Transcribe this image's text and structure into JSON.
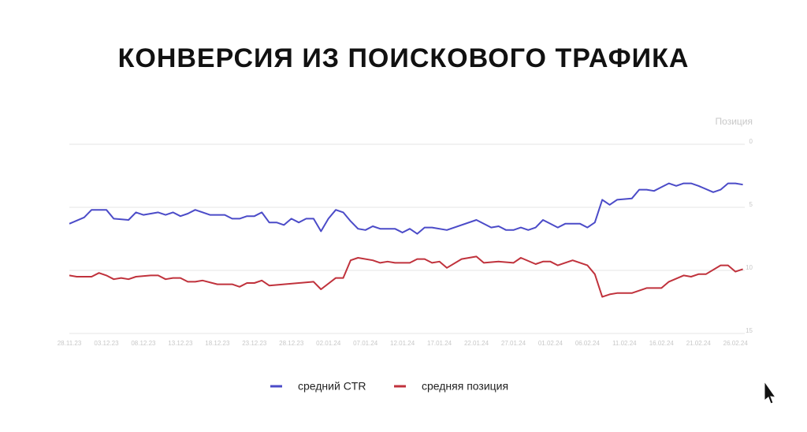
{
  "chart_data": {
    "type": "line",
    "title": "КОНВЕРСИЯ ИЗ ПОИСКОВОГО ТРАФИКА",
    "y_axis_label": "Позиция",
    "ylim": [
      0,
      15
    ],
    "y_inverted": true,
    "yticks": [
      0,
      5,
      10,
      15
    ],
    "xlim": [
      "28.11.23",
      "28.02.24"
    ],
    "xticks": [
      "28.11.23",
      "03.12.23",
      "08.12.23",
      "13.12.23",
      "18.12.23",
      "23.12.23",
      "28.12.23",
      "02.01.24",
      "07.01.24",
      "12.01.24",
      "17.01.24",
      "22.01.24",
      "27.01.24",
      "01.02.24",
      "06.02.24",
      "11.02.24",
      "16.02.24",
      "21.02.24",
      "26.02.24"
    ],
    "grid": true,
    "legend": "bottom",
    "series": [
      {
        "name": "средний CTR",
        "color": "#4b4bc8",
        "x": [
          "28.11.23",
          "30.11.23",
          "01.12.23",
          "03.12.23",
          "04.12.23",
          "06.12.23",
          "07.12.23",
          "08.12.23",
          "10.12.23",
          "11.12.23",
          "12.12.23",
          "13.12.23",
          "14.12.23",
          "15.12.23",
          "17.12.23",
          "19.12.23",
          "20.12.23",
          "21.12.23",
          "22.12.23",
          "23.12.23",
          "24.12.23",
          "25.12.23",
          "26.12.23",
          "27.12.23",
          "28.12.23",
          "29.12.23",
          "30.12.23",
          "31.12.23",
          "01.01.24",
          "02.01.24",
          "03.01.24",
          "04.01.24",
          "05.01.24",
          "06.01.24",
          "07.01.24",
          "08.01.24",
          "09.01.24",
          "11.01.24",
          "12.01.24",
          "13.01.24",
          "14.01.24",
          "15.01.24",
          "16.01.24",
          "18.01.24",
          "22.01.24",
          "24.01.24",
          "25.01.24",
          "26.01.24",
          "27.01.24",
          "28.01.24",
          "29.01.24",
          "30.01.24",
          "31.01.24",
          "02.02.24",
          "03.02.24",
          "05.02.24",
          "06.02.24",
          "07.02.24",
          "08.02.24",
          "09.02.24",
          "10.02.24",
          "12.02.24",
          "13.02.24",
          "14.02.24",
          "15.02.24",
          "16.02.24",
          "17.02.24",
          "18.02.24",
          "19.02.24",
          "20.02.24",
          "21.02.24",
          "23.02.24",
          "24.02.24",
          "25.02.24",
          "26.02.24",
          "27.02.24"
        ],
        "values": [
          6.3,
          5.8,
          5.2,
          5.2,
          5.9,
          6.0,
          5.4,
          5.6,
          5.4,
          5.6,
          5.4,
          5.7,
          5.5,
          5.2,
          5.6,
          5.6,
          5.9,
          5.9,
          5.7,
          5.7,
          5.4,
          6.2,
          6.2,
          6.4,
          5.9,
          6.2,
          5.9,
          5.9,
          6.9,
          5.9,
          5.2,
          5.4,
          6.1,
          6.7,
          6.8,
          6.5,
          6.7,
          6.7,
          7.0,
          6.7,
          7.1,
          6.6,
          6.6,
          6.8,
          6.0,
          6.6,
          6.5,
          6.8,
          6.8,
          6.6,
          6.8,
          6.6,
          6.0,
          6.6,
          6.3,
          6.3,
          6.6,
          6.2,
          4.4,
          4.8,
          4.4,
          4.3,
          3.6,
          3.6,
          3.7,
          3.4,
          3.1,
          3.3,
          3.1,
          3.1,
          3.3,
          3.8,
          3.6,
          3.1,
          3.1,
          3.2
        ]
      },
      {
        "name": "средняя позиция",
        "color": "#c0323c",
        "x": [
          "28.11.23",
          "29.11.23",
          "01.12.23",
          "02.12.23",
          "03.12.23",
          "04.12.23",
          "05.12.23",
          "06.12.23",
          "07.12.23",
          "09.12.23",
          "10.12.23",
          "11.12.23",
          "12.12.23",
          "13.12.23",
          "14.12.23",
          "15.12.23",
          "16.12.23",
          "18.12.23",
          "19.12.23",
          "20.12.23",
          "21.12.23",
          "22.12.23",
          "23.12.23",
          "24.12.23",
          "25.12.23",
          "31.12.23",
          "01.01.24",
          "03.01.24",
          "04.01.24",
          "05.01.24",
          "06.01.24",
          "08.01.24",
          "09.01.24",
          "10.01.24",
          "11.01.24",
          "13.01.24",
          "14.01.24",
          "15.01.24",
          "16.01.24",
          "17.01.24",
          "18.01.24",
          "20.01.24",
          "22.01.24",
          "23.01.24",
          "25.01.24",
          "27.01.24",
          "28.01.24",
          "30.01.24",
          "31.01.24",
          "01.02.24",
          "02.02.24",
          "04.02.24",
          "06.02.24",
          "07.02.24",
          "08.02.24",
          "09.02.24",
          "10.02.24",
          "11.02.24",
          "12.02.24",
          "14.02.24",
          "16.02.24",
          "17.02.24",
          "19.02.24",
          "20.02.24",
          "21.02.24",
          "22.02.24",
          "24.02.24",
          "25.02.24",
          "26.02.24",
          "27.02.24"
        ],
        "values": [
          10.4,
          10.5,
          10.5,
          10.2,
          10.4,
          10.7,
          10.6,
          10.7,
          10.5,
          10.4,
          10.4,
          10.7,
          10.6,
          10.6,
          10.9,
          10.9,
          10.8,
          11.1,
          11.1,
          11.1,
          11.3,
          11.0,
          11.0,
          10.8,
          11.2,
          10.9,
          11.5,
          10.6,
          10.6,
          9.2,
          9.0,
          9.2,
          9.4,
          9.3,
          9.4,
          9.4,
          9.1,
          9.1,
          9.4,
          9.3,
          9.8,
          9.1,
          8.9,
          9.4,
          9.3,
          9.4,
          9.0,
          9.5,
          9.3,
          9.3,
          9.6,
          9.2,
          9.6,
          10.3,
          12.1,
          11.9,
          11.8,
          11.8,
          11.8,
          11.4,
          11.4,
          10.9,
          10.4,
          10.5,
          10.3,
          10.3,
          9.6,
          9.6,
          10.1,
          9.9
        ]
      }
    ]
  }
}
